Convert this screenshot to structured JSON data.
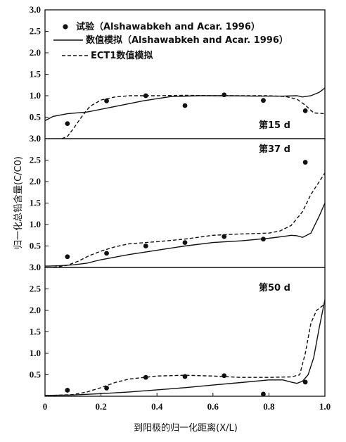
{
  "chart_data": {
    "type": "line",
    "xlabel": "到阳极的归一化距离(X/L)",
    "ylabel": "归一化总铅含量(C/C0)",
    "xlim": [
      0,
      1
    ],
    "x_ticks": [
      "0",
      "0.2",
      "0.4",
      "0.6",
      "0.8",
      "1.0"
    ],
    "legend": {
      "placement": "top-left",
      "entries": [
        {
          "key": "experiment",
          "label": "试验（Alshawabkeh and Acar. 1996）",
          "style": "dot"
        },
        {
          "key": "reference_model",
          "label": "数值模拟（Alshawabkeh and Acar. 1996）",
          "style": "solid"
        },
        {
          "key": "ect1_model",
          "label": "ECT1数值模拟",
          "style": "dashed"
        }
      ]
    },
    "panels": [
      {
        "label": "第15 d",
        "ylim": [
          0,
          3.0
        ],
        "y_ticks": [
          "0",
          "0.5",
          "1.0",
          "1.5",
          "2.0",
          "2.5",
          "3.0"
        ],
        "experiment": {
          "x": [
            0.08,
            0.22,
            0.36,
            0.5,
            0.64,
            0.78,
            0.93
          ],
          "y": [
            0.35,
            0.88,
            1.0,
            0.77,
            1.02,
            0.89,
            0.65
          ]
        },
        "reference_model": {
          "x": [
            0,
            0.03,
            0.08,
            0.15,
            0.25,
            0.35,
            0.45,
            0.55,
            0.65,
            0.75,
            0.85,
            0.9,
            0.92,
            0.95,
            0.98,
            1.0
          ],
          "y": [
            0.42,
            0.52,
            0.58,
            0.62,
            0.75,
            0.88,
            0.98,
            1.0,
            1.0,
            0.99,
            0.99,
            1.0,
            0.97,
            1.0,
            1.08,
            1.18
          ]
        },
        "ect1_model": {
          "x": [
            0.06,
            0.08,
            0.1,
            0.13,
            0.16,
            0.2,
            0.25,
            0.3,
            0.4,
            0.5,
            0.6,
            0.7,
            0.8,
            0.86,
            0.9,
            0.93,
            0.96,
            1.0
          ],
          "y": [
            0.0,
            0.05,
            0.22,
            0.5,
            0.75,
            0.9,
            0.97,
            1.0,
            1.0,
            1.01,
            1.0,
            1.0,
            1.0,
            0.98,
            0.92,
            0.78,
            0.6,
            0.58
          ]
        }
      },
      {
        "label": "第37 d",
        "ylim": [
          0,
          3.0
        ],
        "y_ticks": [
          "0",
          "0.5",
          "1.0",
          "1.5",
          "2.0",
          "2.5",
          "3.0"
        ],
        "experiment": {
          "x": [
            0.08,
            0.22,
            0.36,
            0.5,
            0.64,
            0.78,
            0.93
          ],
          "y": [
            0.25,
            0.33,
            0.5,
            0.58,
            0.72,
            0.66,
            2.45
          ]
        },
        "reference_model": {
          "x": [
            0,
            0.05,
            0.1,
            0.15,
            0.2,
            0.3,
            0.4,
            0.5,
            0.6,
            0.7,
            0.8,
            0.85,
            0.88,
            0.9,
            0.92,
            0.95,
            0.98,
            1.0
          ],
          "y": [
            0.03,
            0.04,
            0.06,
            0.1,
            0.18,
            0.3,
            0.4,
            0.5,
            0.58,
            0.62,
            0.68,
            0.72,
            0.75,
            0.74,
            0.7,
            0.8,
            1.2,
            1.5
          ]
        },
        "ect1_model": {
          "x": [
            0.03,
            0.08,
            0.12,
            0.16,
            0.2,
            0.25,
            0.3,
            0.4,
            0.5,
            0.6,
            0.7,
            0.8,
            0.84,
            0.88,
            0.92,
            0.95,
            0.98,
            1.0
          ],
          "y": [
            0.0,
            0.05,
            0.15,
            0.28,
            0.38,
            0.48,
            0.55,
            0.6,
            0.66,
            0.75,
            0.78,
            0.8,
            0.85,
            0.98,
            1.3,
            1.7,
            2.0,
            2.2
          ]
        }
      },
      {
        "label": "第50 d",
        "ylim": [
          0,
          3.0
        ],
        "y_ticks": [
          "0",
          "0.5",
          "1.0",
          "1.5",
          "2.0",
          "2.5",
          "3.0"
        ],
        "experiment": {
          "x": [
            0.08,
            0.22,
            0.36,
            0.5,
            0.64,
            0.78,
            0.93
          ],
          "y": [
            0.14,
            0.19,
            0.44,
            0.46,
            0.48,
            0.05,
            0.33
          ]
        },
        "reference_model": {
          "x": [
            0,
            0.1,
            0.2,
            0.3,
            0.4,
            0.5,
            0.6,
            0.7,
            0.8,
            0.85,
            0.88,
            0.9,
            0.92,
            0.94,
            0.96,
            0.98,
            1.0
          ],
          "y": [
            0.02,
            0.03,
            0.06,
            0.1,
            0.15,
            0.2,
            0.26,
            0.32,
            0.38,
            0.38,
            0.33,
            0.3,
            0.35,
            0.5,
            0.9,
            1.6,
            2.25
          ]
        },
        "ect1_model": {
          "x": [
            0.03,
            0.1,
            0.15,
            0.2,
            0.25,
            0.3,
            0.4,
            0.5,
            0.6,
            0.7,
            0.8,
            0.88,
            0.91,
            0.93,
            0.95,
            0.97,
            1.0
          ],
          "y": [
            0.02,
            0.04,
            0.1,
            0.2,
            0.32,
            0.4,
            0.47,
            0.49,
            0.47,
            0.44,
            0.44,
            0.45,
            0.5,
            1.0,
            1.7,
            2.0,
            2.15
          ]
        }
      }
    ]
  }
}
